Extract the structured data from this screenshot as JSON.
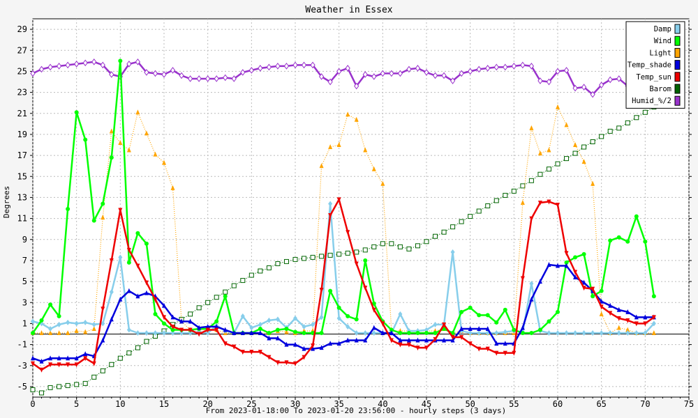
{
  "chart_data": {
    "type": "line",
    "title": "Weather in Essex",
    "xlabel": "From 2023-01-18:00 To 2023-01-20 23:56:00 - hourly steps (3 days)",
    "ylabel": "Degrees",
    "xlim": [
      0,
      75
    ],
    "ylim": [
      -6,
      30
    ],
    "x_ticks": [
      0,
      5,
      10,
      15,
      20,
      25,
      30,
      35,
      40,
      45,
      50,
      55,
      60,
      65,
      70,
      75
    ],
    "y_ticks": [
      -5,
      -3,
      -1,
      1,
      3,
      5,
      7,
      9,
      11,
      13,
      15,
      17,
      19,
      21,
      23,
      25,
      27,
      29
    ],
    "grid": true,
    "legend_position": "top-right",
    "series": [
      {
        "name": "Damp",
        "color": "#87ceeb",
        "marker": "diamond",
        "style": "solid",
        "values": [
          1.2,
          1.0,
          0.5,
          0.9,
          1.1,
          1.0,
          1.1,
          0.9,
          1.0,
          4.0,
          7.3,
          0.4,
          0.1,
          0.1,
          0.1,
          0.1,
          0.1,
          0.1,
          0.1,
          0.2,
          0.1,
          0.8,
          0.3,
          0.1,
          1.7,
          0.6,
          0.9,
          1.3,
          1.4,
          0.6,
          1.5,
          0.7,
          0.9,
          1.6,
          12.4,
          1.5,
          0.7,
          0.1,
          0.1,
          0.1,
          0.1,
          0.1,
          1.9,
          0.3,
          0.3,
          0.4,
          0.9,
          0.9,
          7.8,
          0.3,
          0.1,
          0.1,
          0.1,
          0.1,
          0.2,
          0.3,
          0.2,
          4.8,
          0.3,
          0.1,
          0.1,
          0.1,
          0.1,
          0.1,
          0.1,
          0.1,
          0.1,
          0.1,
          0.1,
          0.1,
          0.1,
          1.0
        ]
      },
      {
        "name": "Wind",
        "color": "#00ff00",
        "marker": "circle",
        "style": "solid",
        "values": [
          0.1,
          1.3,
          2.8,
          1.7,
          11.9,
          21.1,
          18.5,
          10.8,
          12.4,
          16.8,
          26.0,
          6.8,
          9.6,
          8.6,
          1.9,
          1.0,
          0.4,
          0.4,
          0.4,
          0.5,
          0.5,
          1.2,
          3.6,
          0.1,
          0.1,
          0.1,
          0.5,
          0.1,
          0.4,
          0.5,
          0.2,
          0.1,
          0.1,
          0.1,
          4.1,
          2.5,
          1.7,
          1.4,
          7.0,
          2.9,
          1.2,
          0.4,
          0.1,
          0.1,
          0.1,
          0.1,
          0.1,
          0.5,
          0.1,
          2.1,
          2.5,
          1.8,
          1.8,
          1.1,
          2.3,
          0.4,
          0.1,
          0.1,
          0.4,
          1.2,
          2.1,
          6.8,
          7.3,
          7.6,
          3.6,
          4.1,
          8.9,
          9.2,
          8.8,
          11.2,
          8.8,
          3.6
        ]
      },
      {
        "name": "Light",
        "color": "#ffa500",
        "marker": "triangle-up",
        "style": "dotted",
        "values": [
          0.1,
          0.1,
          0.1,
          0.1,
          0.1,
          0.3,
          0.2,
          0.5,
          11.1,
          19.3,
          18.2,
          17.5,
          21.1,
          19.1,
          17.1,
          16.3,
          13.9,
          1.2,
          0.4,
          0.4,
          0.4,
          0.4,
          0.1,
          0.1,
          0.1,
          0.1,
          0.1,
          0.1,
          0.3,
          0.2,
          0.1,
          0.3,
          0.3,
          16.0,
          17.8,
          18.0,
          20.9,
          20.4,
          17.5,
          15.7,
          14.3,
          0.3,
          0.3,
          0.3,
          0.3,
          0.3,
          0.3,
          0.5,
          0.1,
          0.3,
          0.1,
          0.1,
          0.1,
          0.1,
          0.1,
          0.1,
          12.5,
          19.6,
          17.2,
          17.5,
          21.6,
          19.9,
          18.0,
          16.4,
          14.3,
          1.9,
          0.1,
          0.6,
          0.4,
          0.1,
          0.1,
          0.1
        ]
      },
      {
        "name": "Temp_shade",
        "color": "#0000dd",
        "marker": "triangle-up",
        "style": "solid",
        "values": [
          -2.3,
          -2.6,
          -2.3,
          -2.3,
          -2.3,
          -2.3,
          -1.9,
          -2.1,
          -0.6,
          1.4,
          3.3,
          4.1,
          3.6,
          3.9,
          3.6,
          2.7,
          1.6,
          1.2,
          1.2,
          0.6,
          0.7,
          0.7,
          0.4,
          0.1,
          0.1,
          0.1,
          0.1,
          -0.4,
          -0.4,
          -1.0,
          -1.0,
          -1.4,
          -1.4,
          -1.3,
          -0.9,
          -0.9,
          -0.6,
          -0.6,
          -0.6,
          0.6,
          0.1,
          0.1,
          -0.6,
          -0.6,
          -0.6,
          -0.6,
          -0.6,
          -0.6,
          -0.6,
          0.5,
          0.5,
          0.5,
          0.5,
          -0.9,
          -0.9,
          -0.9,
          0.6,
          3.3,
          5.0,
          6.6,
          6.5,
          6.5,
          5.4,
          4.9,
          4.1,
          3.1,
          2.7,
          2.3,
          2.1,
          1.6,
          1.6,
          1.6
        ]
      },
      {
        "name": "Temp_sun",
        "color": "#ee0000",
        "marker": "triangle-down",
        "style": "solid",
        "values": [
          -2.8,
          -3.4,
          -2.9,
          -2.9,
          -2.9,
          -2.9,
          -2.3,
          -2.8,
          2.4,
          7.0,
          11.8,
          8.0,
          6.5,
          4.9,
          3.3,
          1.6,
          0.7,
          0.4,
          0.4,
          0.0,
          0.4,
          0.4,
          -0.9,
          -1.2,
          -1.7,
          -1.7,
          -1.7,
          -2.2,
          -2.7,
          -2.7,
          -2.8,
          -2.2,
          -1.1,
          4.2,
          11.3,
          12.8,
          9.7,
          6.7,
          4.4,
          2.3,
          1.0,
          -0.6,
          -1.0,
          -1.0,
          -1.3,
          -1.3,
          -0.5,
          0.9,
          -0.3,
          -0.3,
          -0.9,
          -1.4,
          -1.4,
          -1.8,
          -1.8,
          -1.8,
          5.3,
          11.0,
          12.5,
          12.6,
          12.3,
          7.7,
          5.9,
          4.4,
          4.3,
          2.6,
          2.0,
          1.5,
          1.3,
          1.0,
          1.0,
          1.6
        ]
      },
      {
        "name": "Barom",
        "color": "#006400",
        "marker": "square-open",
        "style": "dotted",
        "values": [
          -5.3,
          -5.6,
          -5.1,
          -5.0,
          -4.9,
          -4.8,
          -4.7,
          -4.1,
          -3.5,
          -2.9,
          -2.3,
          -1.8,
          -1.3,
          -0.7,
          -0.2,
          0.3,
          0.9,
          1.4,
          1.9,
          2.5,
          3.0,
          3.5,
          4.0,
          4.6,
          5.1,
          5.6,
          6.0,
          6.3,
          6.7,
          6.9,
          7.1,
          7.2,
          7.3,
          7.4,
          7.5,
          7.6,
          7.7,
          7.8,
          8.0,
          8.3,
          8.6,
          8.6,
          8.3,
          8.1,
          8.4,
          8.8,
          9.3,
          9.7,
          10.2,
          10.7,
          11.2,
          11.7,
          12.2,
          12.7,
          13.2,
          13.6,
          14.1,
          14.6,
          15.2,
          15.7,
          16.2,
          16.7,
          17.2,
          17.8,
          18.3,
          18.8,
          19.3,
          19.6,
          20.1,
          20.6,
          21.1,
          21.6
        ]
      },
      {
        "name": "Humid_%/2",
        "color": "#9932cc",
        "marker": "diamond-open",
        "style": "solid",
        "values": [
          24.8,
          25.2,
          25.4,
          25.5,
          25.6,
          25.7,
          25.8,
          25.9,
          25.6,
          24.7,
          24.5,
          25.7,
          25.9,
          24.9,
          24.8,
          24.7,
          25.1,
          24.6,
          24.3,
          24.3,
          24.3,
          24.3,
          24.4,
          24.3,
          24.9,
          25.1,
          25.3,
          25.4,
          25.5,
          25.5,
          25.6,
          25.6,
          25.6,
          24.5,
          24.0,
          25.0,
          25.3,
          23.6,
          24.7,
          24.5,
          24.8,
          24.8,
          24.8,
          25.2,
          25.3,
          24.9,
          24.6,
          24.6,
          24.1,
          24.8,
          25.0,
          25.2,
          25.3,
          25.4,
          25.4,
          25.5,
          25.6,
          25.5,
          24.1,
          24.0,
          25.0,
          25.1,
          23.4,
          23.5,
          22.8,
          23.7,
          24.2,
          24.3,
          23.6,
          25.5,
          25.1,
          25.4
        ]
      }
    ]
  }
}
